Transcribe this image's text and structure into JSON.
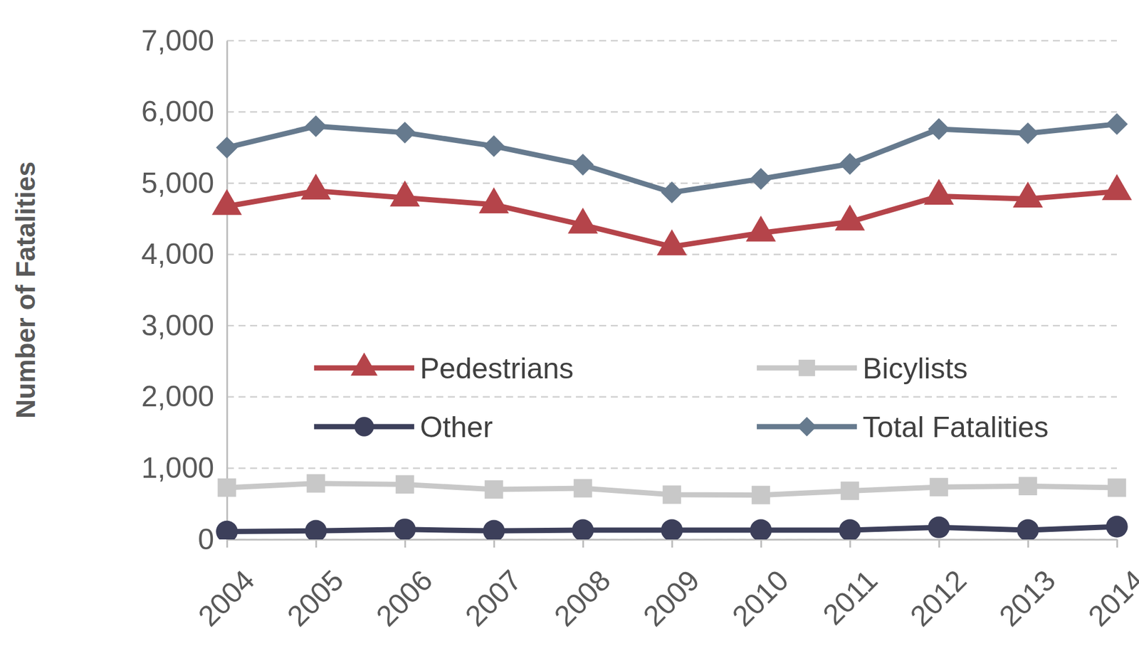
{
  "chart_data": {
    "type": "line",
    "y_label": "Number of Fatalities",
    "categories": [
      "2004",
      "2005",
      "2006",
      "2007",
      "2008",
      "2009",
      "2010",
      "2011",
      "2012",
      "2013",
      "2014"
    ],
    "series": [
      {
        "name": "Pedestrians",
        "color": "#b5444a",
        "marker": "triangle",
        "values": [
          4675,
          4892,
          4795,
          4699,
          4414,
          4109,
          4302,
          4457,
          4818,
          4779,
          4884
        ]
      },
      {
        "name": "Bicylists",
        "color": "#c8c8c8",
        "marker": "square",
        "values": [
          727,
          786,
          772,
          701,
          718,
          628,
          623,
          682,
          734,
          749,
          726
        ]
      },
      {
        "name": "Other",
        "color": "#3c3f5a",
        "marker": "circle",
        "values": [
          110,
          120,
          140,
          120,
          130,
          130,
          130,
          130,
          170,
          130,
          180
        ]
      },
      {
        "name": "Total Fatalities",
        "color": "#667a8e",
        "marker": "diamond",
        "values": [
          5500,
          5800,
          5710,
          5520,
          5260,
          4870,
          5060,
          5270,
          5760,
          5700,
          5830
        ]
      }
    ],
    "ylim": [
      0,
      7000
    ],
    "yticks": [
      0,
      {
        "value": 1000,
        "label": "1,000"
      },
      {
        "value": 2000,
        "label": "2,000"
      },
      {
        "value": 3000,
        "label": "3,000"
      },
      {
        "value": 4000,
        "label": "4,000"
      },
      {
        "value": 5000,
        "label": "5,000"
      },
      {
        "value": 6000,
        "label": "6,000"
      },
      {
        "value": 7000,
        "label": "7,000"
      }
    ],
    "grid": true,
    "legend": "center"
  }
}
